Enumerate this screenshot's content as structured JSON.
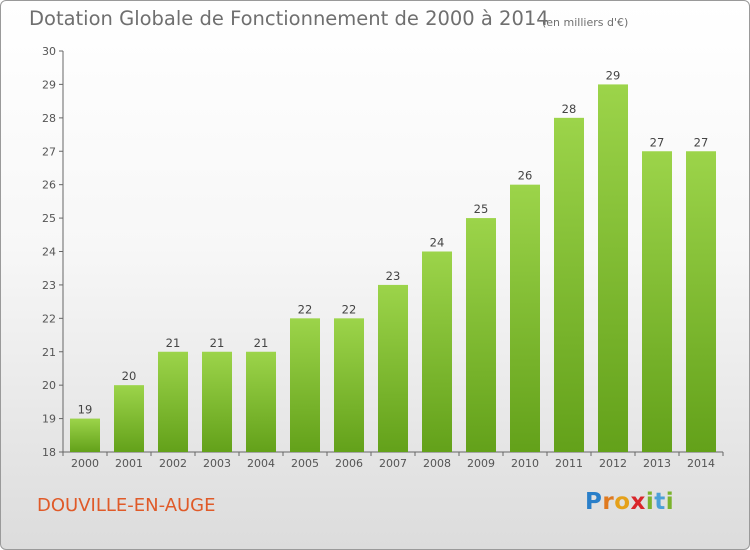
{
  "title": "Dotation Globale de Fonctionnement de 2000 à 2014",
  "subtitle": "(en milliers d'€)",
  "place_name": "DOUVILLE-EN-AUGE",
  "logo": {
    "letters": [
      "P",
      "r",
      "o",
      "x",
      "i",
      "t",
      "i"
    ],
    "colors": [
      "#2a7fc9",
      "#e07a1f",
      "#e5a11a",
      "#d9262b",
      "#7bb32e",
      "#4aa0d8",
      "#7bb32e"
    ]
  },
  "colors": {
    "bar_light": "#9cd44a",
    "bar_dark": "#63a11a",
    "title": "#6f6f6f",
    "place": "#e05a28"
  },
  "chart_data": {
    "type": "bar",
    "categories": [
      "2000",
      "2001",
      "2002",
      "2003",
      "2004",
      "2005",
      "2006",
      "2007",
      "2008",
      "2009",
      "2010",
      "2011",
      "2012",
      "2013",
      "2014"
    ],
    "values": [
      19,
      20,
      21,
      21,
      21,
      22,
      22,
      23,
      24,
      25,
      26,
      28,
      29,
      27,
      27
    ],
    "y_ticks": [
      18,
      19,
      20,
      21,
      22,
      23,
      24,
      25,
      26,
      27,
      28,
      29,
      30
    ],
    "ylim": [
      18,
      30
    ],
    "grid": false,
    "legend": "none"
  }
}
